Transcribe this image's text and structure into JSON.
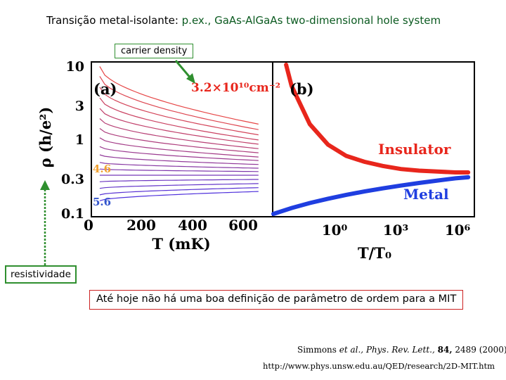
{
  "title": {
    "prefix": "Transição metal-isolante:",
    "highlight": "p.ex., GaAs-AlGaAs two-dimensional hole system"
  },
  "annotations": {
    "carrier_density": "carrier density",
    "resistividade": "resistividade",
    "statement": "Até hoje não há uma boa definição de parâmetro de ordem para a MIT"
  },
  "reference": {
    "authors": "Simmons",
    "etal": "et al.,",
    "journal": "Phys. Rev. Lett.,",
    "volume": "84,",
    "pages_year": "2489 (2000)",
    "url": "http://www.phys.unsw.edu.au/QED/research/2D-MIT.htm"
  },
  "figure": {
    "y_axis_label": "ρ (h/e²)",
    "y_ticks": [
      "10",
      "3",
      "1",
      "0.3",
      "0.1"
    ],
    "panel_a": {
      "tag": "(a)",
      "density_label": "3.2×10¹⁰cm⁻²",
      "x_axis_label": "T (mK)",
      "x_ticks": [
        "0",
        "200",
        "400",
        "600"
      ],
      "marker_46": "4.6",
      "marker_56": "5.6"
    },
    "panel_b": {
      "tag": "(b)",
      "x_axis_label": "T/T₀",
      "x_ticks": [
        "10⁰",
        "10³",
        "10⁶"
      ],
      "insulator_label": "Insulator",
      "metal_label": "Metal"
    },
    "colors": {
      "insulator": "#e8261c",
      "metal": "#1f3ee0",
      "annotation_green": "#2f8f2f",
      "title_green": "#0b5a20",
      "marker_orange": "#f0a030",
      "statement_border": "#cc2222"
    }
  },
  "chart_data": [
    {
      "type": "line",
      "title": "(a)",
      "xlabel": "T (mK)",
      "ylabel": "ρ (h/e²)",
      "xlim": [
        0,
        700
      ],
      "ylim": [
        0.1,
        10
      ],
      "yscale": "log",
      "annotations": [
        "3.2×10¹⁰cm⁻²",
        "4.6",
        "5.6"
      ],
      "series": [
        {
          "values_at_T0": 9.5,
          "values_at_T650": 1.6
        },
        {
          "values_at_T0": 7.0,
          "values_at_T650": 1.35
        },
        {
          "values_at_T0": 5.0,
          "values_at_T650": 1.15
        },
        {
          "values_at_T0": 3.6,
          "values_at_T650": 0.98
        },
        {
          "values_at_T0": 2.6,
          "values_at_T650": 0.86
        },
        {
          "values_at_T0": 1.9,
          "values_at_T650": 0.75
        },
        {
          "values_at_T0": 1.4,
          "values_at_T650": 0.66
        },
        {
          "values_at_T0": 1.05,
          "values_at_T650": 0.58
        },
        {
          "values_at_T0": 0.8,
          "values_at_T650": 0.52
        },
        {
          "values_at_T0": 0.62,
          "values_at_T650": 0.46
        },
        {
          "values_at_T0": 0.49,
          "values_at_T650": 0.41
        },
        {
          "values_at_T0": 0.4,
          "values_at_T650": 0.37
        },
        {
          "values_at_T0": 0.33,
          "values_at_T650": 0.33
        },
        {
          "values_at_T0": 0.27,
          "values_at_T650": 0.29
        },
        {
          "values_at_T0": 0.22,
          "values_at_T650": 0.255
        },
        {
          "values_at_T0": 0.18,
          "values_at_T650": 0.225
        },
        {
          "values_at_T0": 0.15,
          "values_at_T650": 0.2
        }
      ]
    },
    {
      "type": "line",
      "title": "(b)",
      "xlabel": "T/T₀",
      "ylabel": "ρ (h/e²)",
      "xscale": "log",
      "yscale": "log",
      "xlim": [
        0.0001,
        10000000
      ],
      "ylim": [
        0.1,
        10
      ],
      "series": [
        {
          "name": "Insulator",
          "x": [
            0.0005,
            0.001,
            0.01,
            0.1,
            1,
            10,
            100,
            1000,
            10000,
            100000,
            1000000,
            5000000
          ],
          "y": [
            10,
            5.2,
            1.6,
            0.85,
            0.6,
            0.5,
            0.44,
            0.4,
            0.38,
            0.37,
            0.36,
            0.36
          ]
        },
        {
          "name": "Metal",
          "x": [
            0.0001,
            0.001,
            0.01,
            0.1,
            1,
            10,
            100,
            1000,
            10000,
            100000,
            1000000,
            5000000
          ],
          "y": [
            0.1,
            0.12,
            0.14,
            0.16,
            0.18,
            0.2,
            0.22,
            0.24,
            0.26,
            0.28,
            0.3,
            0.31
          ]
        }
      ]
    }
  ]
}
